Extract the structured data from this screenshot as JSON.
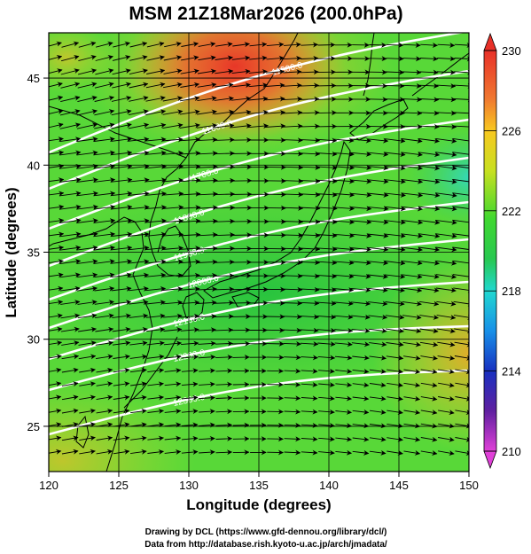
{
  "title": "MSM 21Z18Mar2026 (200.0hPa)",
  "x_axis": {
    "label": "Longitude (degrees)",
    "ticks": [
      "120",
      "125",
      "130",
      "135",
      "140",
      "145",
      "150"
    ],
    "range": [
      120,
      150
    ]
  },
  "y_axis": {
    "label": "Latitude  (degrees)",
    "ticks": [
      "25",
      "30",
      "35",
      "40",
      "45"
    ],
    "range": [
      22.4,
      47.6
    ]
  },
  "colorbar": {
    "ticks": [
      "230",
      "226",
      "222",
      "218",
      "214",
      "210"
    ],
    "range": [
      210,
      230
    ],
    "colors": [
      "#e040d8",
      "#6020a0",
      "#1830c0",
      "#1890e8",
      "#20d8d0",
      "#28c850",
      "#40d830",
      "#c8e020",
      "#f8c820",
      "#f07830",
      "#e83028"
    ]
  },
  "contour_labels": [
    "11500.0",
    "11600.0",
    "11700.0",
    "11800.0",
    "11900.0",
    "12000.0",
    "12100.0",
    "12200.0",
    "12300.0"
  ],
  "credits": {
    "line1": "Drawing by DCL (https://www.gfd-dennou.org/library/dcl/)",
    "line2": "Data from http://database.rish.kyoto-u.ac.jp/arch/jmadata/"
  },
  "colors": {
    "contour": "#ffffff",
    "vector": "#000000",
    "coastline": "#000000"
  }
}
